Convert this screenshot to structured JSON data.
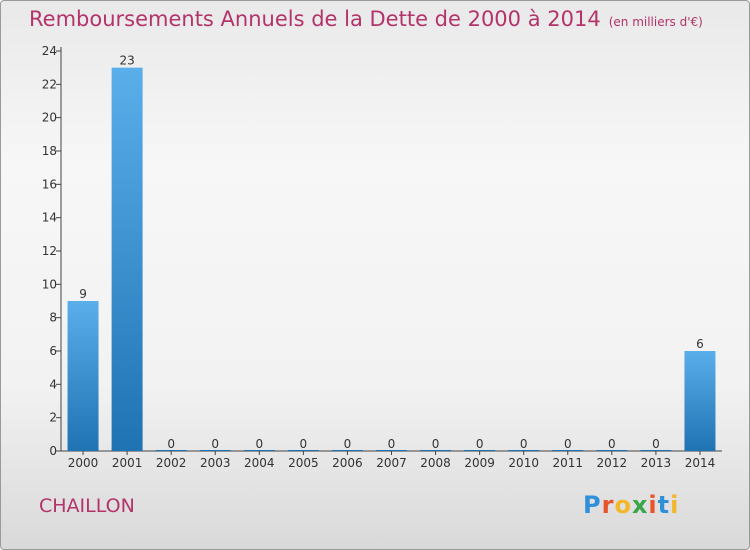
{
  "title": "Remboursements Annuels de la Dette de 2000 à 2014",
  "subtitle": "(en milliers d'€)",
  "place": "CHAILLON",
  "logo": {
    "letters": [
      "P",
      "r",
      "o",
      "x",
      "i",
      "t",
      "i"
    ],
    "colors": [
      "#2f8fd8",
      "#e8542a",
      "#f2b62b",
      "#3aa64a",
      "#e8542a",
      "#2f8fd8",
      "#f2b62b"
    ]
  },
  "chart_data": {
    "type": "bar",
    "categories": [
      "2000",
      "2001",
      "2002",
      "2003",
      "2004",
      "2005",
      "2006",
      "2007",
      "2008",
      "2009",
      "2010",
      "2011",
      "2012",
      "2013",
      "2014"
    ],
    "values": [
      9,
      23,
      0,
      0,
      0,
      0,
      0,
      0,
      0,
      0,
      0,
      0,
      0,
      0,
      6
    ],
    "ylim": [
      0,
      24
    ],
    "yticks": [
      0,
      2,
      4,
      6,
      8,
      10,
      12,
      14,
      16,
      18,
      20,
      22,
      24
    ],
    "bar_color_top": "#5aaeea",
    "bar_color_bottom": "#1f73b3"
  }
}
